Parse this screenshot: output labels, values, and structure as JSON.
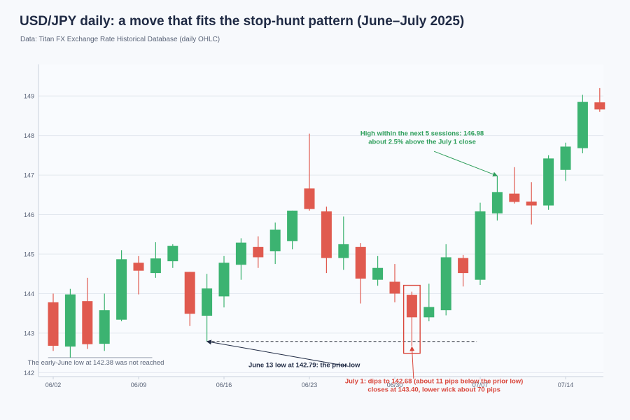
{
  "header": {
    "title": "USD/JPY daily: a move that fits the stop-hunt pattern (June–July 2025)",
    "subtitle": "Data: Titan FX Exchange Rate Historical Database (daily OHLC)"
  },
  "colors": {
    "up": "#3cb371",
    "down": "#e05a4f",
    "grid": "#e3e8ef",
    "axis": "#5a6478",
    "annotation_green": "#2e9e5b",
    "annotation_red": "#d9463b",
    "annotation_dark": "#1f2a44"
  },
  "chart_data": {
    "type": "candlestick",
    "title": "USD/JPY daily: a move that fits the stop-hunt pattern (June–July 2025)",
    "ylim": [
      141.9,
      149.8
    ],
    "yticks": [
      142,
      143,
      144,
      145,
      146,
      147,
      148,
      149
    ],
    "xticks": [
      {
        "label": "06/02",
        "index": 0
      },
      {
        "label": "06/09",
        "index": 5
      },
      {
        "label": "06/16",
        "index": 10
      },
      {
        "label": "06/23",
        "index": 15
      },
      {
        "label": "06/30",
        "index": 20
      },
      {
        "label": "07/07",
        "index": 25
      },
      {
        "label": "07/14",
        "index": 30
      }
    ],
    "candles": [
      {
        "date": "06/02",
        "open": 143.78,
        "high": 144.0,
        "low": 142.55,
        "close": 142.68
      },
      {
        "date": "06/03",
        "open": 142.66,
        "high": 144.12,
        "low": 142.38,
        "close": 143.98
      },
      {
        "date": "06/04",
        "open": 143.81,
        "high": 144.4,
        "low": 142.6,
        "close": 142.72
      },
      {
        "date": "06/05",
        "open": 142.73,
        "high": 144.0,
        "low": 142.55,
        "close": 143.58
      },
      {
        "date": "06/06",
        "open": 143.34,
        "high": 145.1,
        "low": 143.3,
        "close": 144.87
      },
      {
        "date": "06/09",
        "open": 144.78,
        "high": 144.95,
        "low": 143.98,
        "close": 144.58
      },
      {
        "date": "06/10",
        "open": 144.52,
        "high": 145.3,
        "low": 144.4,
        "close": 144.89
      },
      {
        "date": "06/11",
        "open": 144.82,
        "high": 145.25,
        "low": 144.65,
        "close": 145.21
      },
      {
        "date": "06/12",
        "open": 144.55,
        "high": 144.55,
        "low": 143.18,
        "close": 143.49
      },
      {
        "date": "06/13",
        "open": 143.44,
        "high": 144.5,
        "low": 142.79,
        "close": 144.13
      },
      {
        "date": "06/16",
        "open": 143.93,
        "high": 144.95,
        "low": 143.65,
        "close": 144.78
      },
      {
        "date": "06/17",
        "open": 144.73,
        "high": 145.4,
        "low": 144.35,
        "close": 145.29
      },
      {
        "date": "06/18",
        "open": 145.18,
        "high": 145.45,
        "low": 144.65,
        "close": 144.92
      },
      {
        "date": "06/19",
        "open": 145.07,
        "high": 145.8,
        "low": 144.75,
        "close": 145.62
      },
      {
        "date": "06/20",
        "open": 145.33,
        "high": 146.1,
        "low": 145.12,
        "close": 146.1
      },
      {
        "date": "06/23",
        "open": 146.66,
        "high": 148.05,
        "low": 146.1,
        "close": 146.14
      },
      {
        "date": "06/24",
        "open": 146.08,
        "high": 146.2,
        "low": 144.52,
        "close": 144.9
      },
      {
        "date": "06/25",
        "open": 144.9,
        "high": 145.95,
        "low": 144.6,
        "close": 145.25
      },
      {
        "date": "06/26",
        "open": 145.18,
        "high": 145.28,
        "low": 143.75,
        "close": 144.38
      },
      {
        "date": "06/27",
        "open": 144.35,
        "high": 144.95,
        "low": 144.2,
        "close": 144.65
      },
      {
        "date": "06/30",
        "open": 144.3,
        "high": 144.75,
        "low": 143.78,
        "close": 144.0
      },
      {
        "date": "07/01",
        "open": 143.97,
        "high": 144.05,
        "low": 142.68,
        "close": 143.4
      },
      {
        "date": "07/02",
        "open": 143.4,
        "high": 144.25,
        "low": 143.3,
        "close": 143.66
      },
      {
        "date": "07/03",
        "open": 143.58,
        "high": 145.25,
        "low": 143.45,
        "close": 144.92
      },
      {
        "date": "07/04",
        "open": 144.9,
        "high": 144.98,
        "low": 144.18,
        "close": 144.52
      },
      {
        "date": "07/07",
        "open": 144.35,
        "high": 146.3,
        "low": 144.22,
        "close": 146.08
      },
      {
        "date": "07/08",
        "open": 146.03,
        "high": 146.98,
        "low": 145.85,
        "close": 146.57
      },
      {
        "date": "07/09",
        "open": 146.53,
        "high": 147.2,
        "low": 146.28,
        "close": 146.32
      },
      {
        "date": "07/10",
        "open": 146.33,
        "high": 146.82,
        "low": 145.75,
        "close": 146.23
      },
      {
        "date": "07/11",
        "open": 146.23,
        "high": 147.5,
        "low": 146.12,
        "close": 147.42
      },
      {
        "date": "07/14",
        "open": 147.13,
        "high": 147.82,
        "low": 146.85,
        "close": 147.72
      },
      {
        "date": "07/15",
        "open": 147.68,
        "high": 149.03,
        "low": 147.55,
        "close": 148.85
      },
      {
        "date": "07/16",
        "open": 148.84,
        "high": 149.2,
        "low": 148.6,
        "close": 148.66
      }
    ],
    "reference_lines": [
      {
        "name": "early-june-low",
        "value": 142.38,
        "from_index": -0.3,
        "to_index": 5.8,
        "style": "solid"
      },
      {
        "name": "prior-low",
        "value": 142.79,
        "from_index": 9,
        "to_index": 24.8,
        "style": "dashed"
      }
    ],
    "highlight": {
      "from_index": 20.6,
      "to_index": 21.4,
      "low": 142.49,
      "high": 144.21
    },
    "annotations": [
      {
        "name": "early-june-note",
        "text_lines": [
          "The early-June low at 142.38 was not reached"
        ],
        "x_index": 2.5,
        "y": 142.2,
        "color_key": "axis",
        "arrow": false
      },
      {
        "name": "prior-low-note",
        "text_lines": [
          "June 13 low at 142.79: the prior low"
        ],
        "x_index": 14.7,
        "y": 142.14,
        "color_key": "annotation_dark",
        "bold": true,
        "arrow": true,
        "arrow_from_index": 17.3,
        "arrow_from_y": 142.16,
        "arrow_to_index": 9.0,
        "arrow_to_y": 142.79
      },
      {
        "name": "july1-note",
        "text_lines": [
          "July 1: dips to 142.68 (about 11 pips below the prior low)",
          "closes at 143.40, lower wick about 70 pips"
        ],
        "x_index": 22.3,
        "y": 141.73,
        "color_key": "annotation_red",
        "bold": true,
        "arrow": true,
        "arrow_from_index": 21.1,
        "arrow_from_y": 141.85,
        "arrow_to_index": 21.0,
        "arrow_to_y": 142.66
      },
      {
        "name": "high-note",
        "text_lines": [
          "High within the next 5 sessions: 146.98",
          "about 2.5% above the July 1 close"
        ],
        "x_index": 21.6,
        "y": 148.0,
        "color_key": "annotation_green",
        "bold": true,
        "arrow": true,
        "arrow_from_index": 22.3,
        "arrow_from_y": 147.6,
        "arrow_to_index": 26.0,
        "arrow_to_y": 146.98
      }
    ]
  }
}
